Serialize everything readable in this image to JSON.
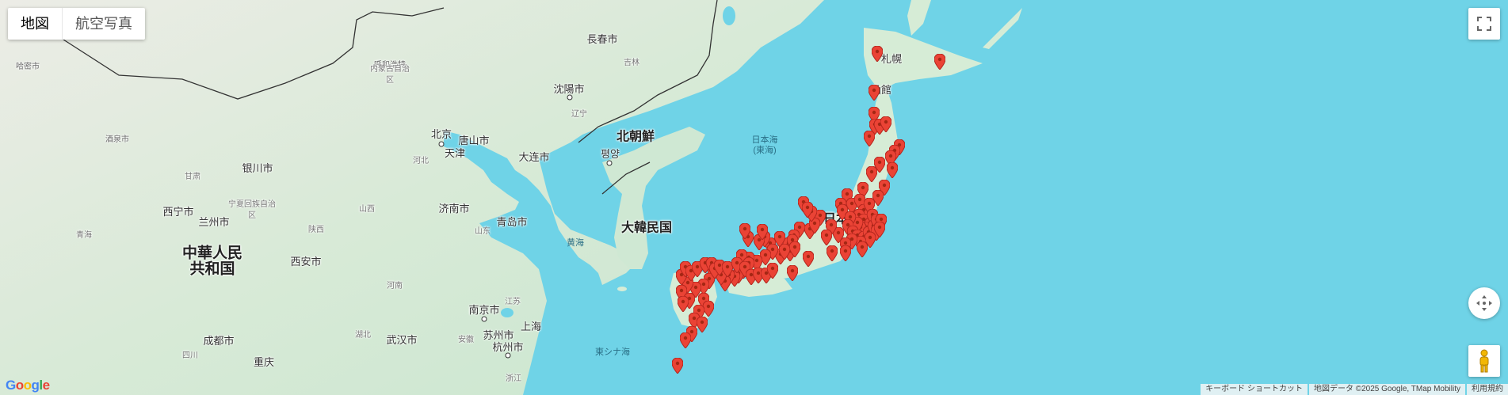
{
  "maptype": {
    "map_label": "地図",
    "satellite_label": "航空写真"
  },
  "labels": {
    "countries": {
      "north_korea": "北朝鮮",
      "south_korea": "大韓民国",
      "china_line1": "中華人民",
      "china_line2": "共和国",
      "japan_partial": "日本"
    },
    "cities": {
      "sapporo": "札幌",
      "hakodate": "函館",
      "changchun": "長春市",
      "shenyang": "沈陽市",
      "beijing": "北京",
      "tangshan": "唐山市",
      "tianjin": "天津",
      "dalian": "大连市",
      "pyongyang": "평양",
      "yinchuan": "银川市",
      "xining": "西宁市",
      "lanzhou": "兰州市",
      "jinan": "济南市",
      "qingdao": "青岛市",
      "xian": "西安市",
      "nanjing": "南京市",
      "suzhou": "苏州市",
      "shanghai": "上海",
      "hangzhou": "杭州市",
      "wuhan": "武汉市",
      "chengdu": "成都市",
      "chongqing": "重庆",
      "huhehaote": "呼和浩特",
      "hami": "哈密市",
      "jiuquan": "酒泉市"
    },
    "regions": {
      "jilin": "吉林",
      "liaoning": "辽宁",
      "hebei": "河北",
      "shanxi": "山西",
      "shaanxi": "陕西",
      "shandong": "山东",
      "henan": "河南",
      "hubei": "湖北",
      "anhui": "安徽",
      "jiangsu": "江苏",
      "zhejiang": "浙江",
      "sichuan": "四川",
      "gansu": "甘肃",
      "qinghai": "青海",
      "ningxia": "宁夏回族自治区",
      "neimenggu": "内蒙古自治区"
    },
    "seas": {
      "sea_of_japan_1": "日本海",
      "sea_of_japan_2": "(東海)",
      "yellow_sea": "黄海",
      "east_china_sea": "東シナ海"
    }
  },
  "markers": {
    "count": 118,
    "color": "#ea4335"
  },
  "footer": {
    "shortcuts": "キーボード ショートカット",
    "map_data": "地図データ ©2025 Google, TMap Mobility",
    "terms": "利用規約"
  },
  "logo_text": "Google",
  "controls": {
    "fullscreen_icon": "fullscreen-icon",
    "camera_icon": "camera-control-icon",
    "pegman_icon": "pegman-icon"
  },
  "colors": {
    "water": "#6fd3e7",
    "land": "#e8efe6",
    "marker": "#ea4335"
  }
}
